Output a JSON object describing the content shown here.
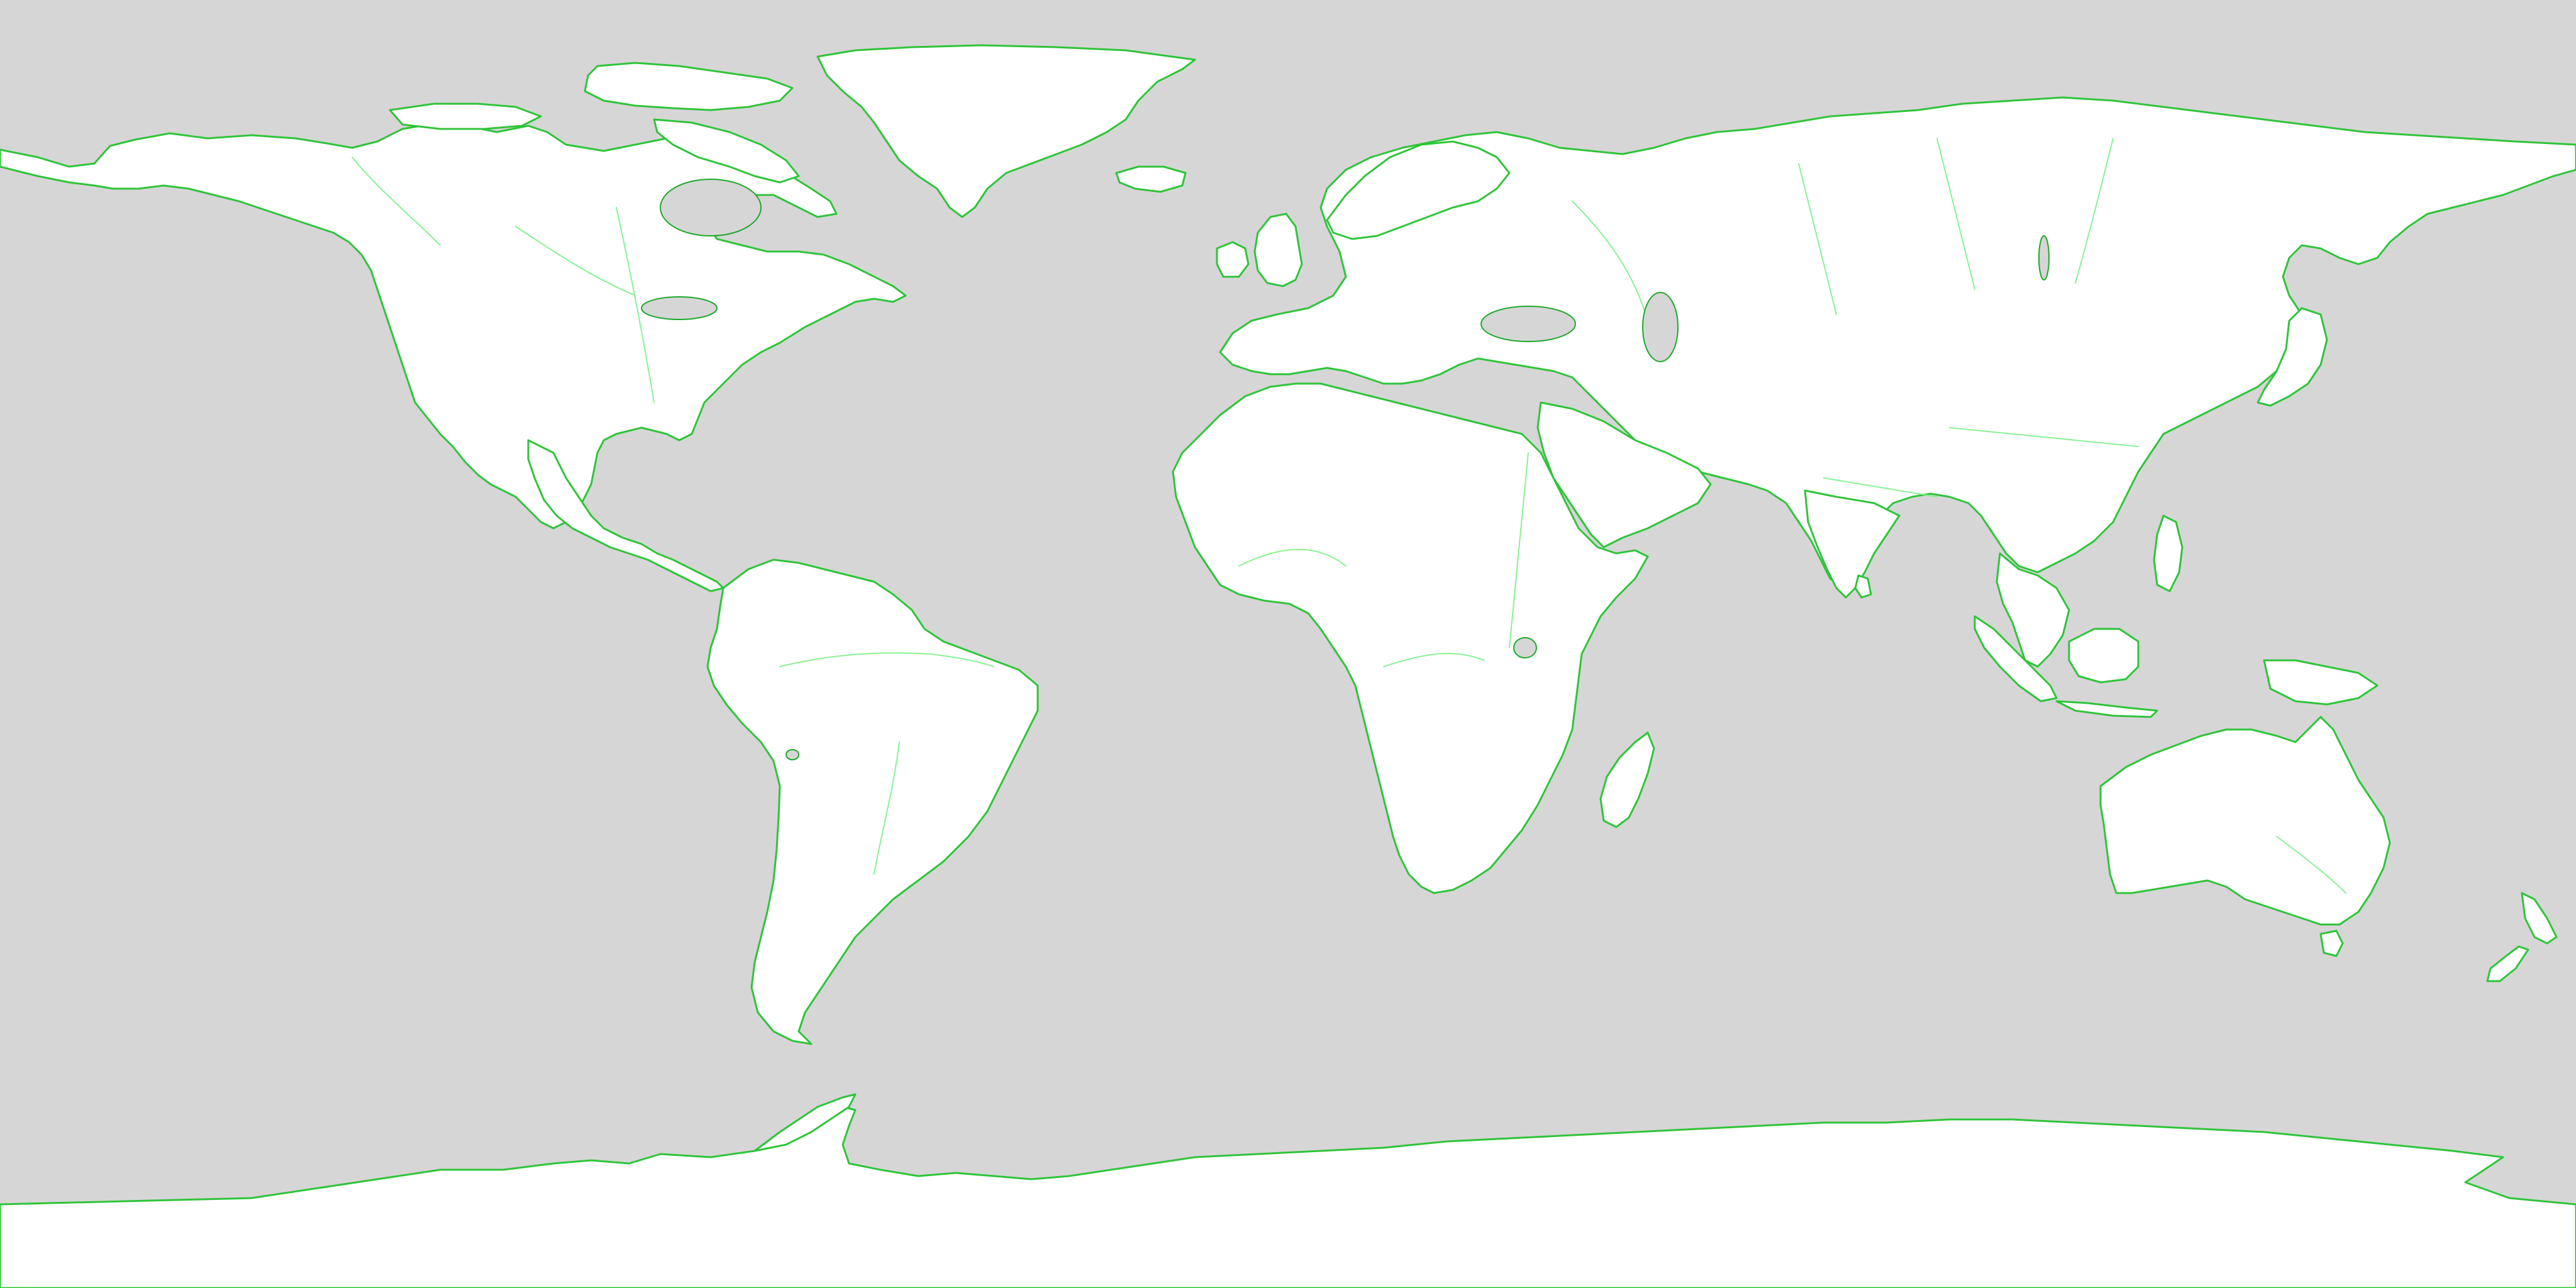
{
  "map": {
    "projection": "equirectangular",
    "extent": {
      "lon": [
        -180,
        180
      ],
      "lat": [
        -90,
        90
      ]
    },
    "layers": [
      "ocean",
      "land",
      "coastline",
      "rivers",
      "lakes"
    ]
  },
  "colors": {
    "ocean": "#d6d6d6",
    "land": "#ffffff",
    "coastline": "#2fc43a",
    "rivers": "#7cf08a",
    "lakes": "#1ea82a"
  }
}
